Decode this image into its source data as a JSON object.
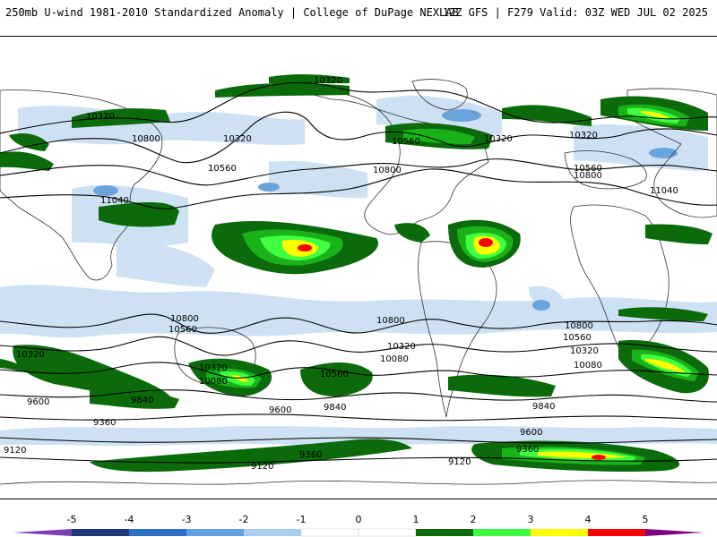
{
  "header": {
    "title": "250mb U-wind 1981-2010 Standardized Anomaly | College of DuPage NEXLAB",
    "run_info": "12Z GFS | F279 Valid: 03Z WED JUL 02 2025"
  },
  "colorbar": {
    "ticks": [
      "-5",
      "-4",
      "-3",
      "-2",
      "-1",
      "0",
      "1",
      "2",
      "3",
      "4",
      "5"
    ],
    "colors": [
      "#7a3fb0",
      "#1f3a7a",
      "#2f6fc8",
      "#5e9fdc",
      "#a9cdee",
      "#d6e6f5",
      "#ffffff",
      "#ffffff",
      "#0b6b0b",
      "#19b319",
      "#3fff3f",
      "#ffff00",
      "#ff0000",
      "#800080"
    ]
  },
  "contour_labels": [
    {
      "id": "10320-a",
      "text": "10320"
    },
    {
      "id": "10320-b",
      "text": "10320"
    },
    {
      "id": "10800-a",
      "text": "10800"
    },
    {
      "id": "10320-c",
      "text": "10320"
    },
    {
      "id": "10560-a",
      "text": "10560"
    },
    {
      "id": "11040-a",
      "text": "11040"
    },
    {
      "id": "10560-b",
      "text": "10560"
    },
    {
      "id": "10800-b",
      "text": "10800"
    },
    {
      "id": "10320-d",
      "text": "10320"
    },
    {
      "id": "10320-e",
      "text": "10320"
    },
    {
      "id": "10560-c",
      "text": "10560"
    },
    {
      "id": "10800-c",
      "text": "10800"
    },
    {
      "id": "11040-b",
      "text": "11040"
    },
    {
      "id": "10800-d",
      "text": "10800"
    },
    {
      "id": "10560-d",
      "text": "10560"
    },
    {
      "id": "10800-e",
      "text": "10800"
    },
    {
      "id": "10800-f",
      "text": "10800"
    },
    {
      "id": "10560-e",
      "text": "10560"
    },
    {
      "id": "10320-f",
      "text": "10320"
    },
    {
      "id": "10080-a",
      "text": "10080"
    },
    {
      "id": "10320-g",
      "text": "10320"
    },
    {
      "id": "10080-b",
      "text": "10080"
    },
    {
      "id": "10560-f",
      "text": "10560"
    },
    {
      "id": "10320-h",
      "text": "10320"
    },
    {
      "id": "10080-c",
      "text": "10080"
    },
    {
      "id": "10320-i",
      "text": "10320"
    },
    {
      "id": "9840-a",
      "text": "9840"
    },
    {
      "id": "9600-a",
      "text": "9600"
    },
    {
      "id": "9360-a",
      "text": "9360"
    },
    {
      "id": "9600-b",
      "text": "9600"
    },
    {
      "id": "9840-b",
      "text": "9840"
    },
    {
      "id": "9840-c",
      "text": "9840"
    },
    {
      "id": "9600-c",
      "text": "9600"
    },
    {
      "id": "9360-b",
      "text": "9360"
    },
    {
      "id": "9120-a",
      "text": "9120"
    },
    {
      "id": "9120-b",
      "text": "9120"
    },
    {
      "id": "9360-c",
      "text": "9360"
    },
    {
      "id": "9120-c",
      "text": "9120"
    }
  ]
}
